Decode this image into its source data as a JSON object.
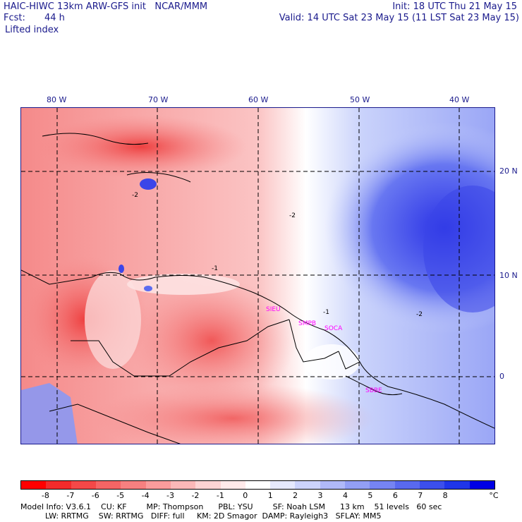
{
  "header": {
    "title": "HAIC-HIWC 13km ARW-GFS init   NCAR/MMM",
    "init": "Init: 18 UTC Thu 21 May 15",
    "fcst_label": "Fcst:",
    "fcst_value": "44 h",
    "valid": "Valid: 14 UTC Sat 23 May 15 (11 LST Sat 23 May 15)",
    "field": "Lifted index"
  },
  "map": {
    "lon_labels": [
      "80 W",
      "70 W",
      "60 W",
      "50 W",
      "40 W"
    ],
    "lat_labels": [
      "20 N",
      "10 N",
      "0"
    ],
    "contour_labels": [
      "-2",
      "-2",
      "-1",
      "-1",
      "-2"
    ],
    "stations": [
      "SIEU",
      "SMPB",
      "SOCA",
      "SBBE"
    ],
    "colors": {
      "neg_strong": "#f04a4a",
      "neg_mid": "#f58a8a",
      "neg_weak": "#fbc4c4",
      "neutral": "#ffffff",
      "pos_weak": "#c9d2fb",
      "pos_mid": "#7f8ef4",
      "pos_strong": "#2a32e6",
      "grid": "#000000",
      "coast": "#000000",
      "station": "#ff00ff"
    }
  },
  "colorbar": {
    "colors": [
      "#ff0000",
      "#f22b2b",
      "#f44848",
      "#f56565",
      "#f78080",
      "#f99c9c",
      "#fbb8b8",
      "#fdd4d4",
      "#ffeaea",
      "#ffffff",
      "#e6e9fd",
      "#ccd3fb",
      "#b0b9f8",
      "#939ff5",
      "#7684f2",
      "#5969ef",
      "#3c4fec",
      "#1f35e9",
      "#0000e6"
    ],
    "labels": [
      "-8",
      "-7",
      "-6",
      "-5",
      "-4",
      "-3",
      "-2",
      "-1",
      "0",
      "1",
      "2",
      "3",
      "4",
      "5",
      "6",
      "7",
      "8"
    ],
    "unit": "°C"
  },
  "footer": {
    "line1": "Model Info: V3.6.1    CU: KF        MP: Thompson      PBL: YSU        SF: Noah LSM      13 km    51 levels   60 sec",
    "line2": "          LW: RRTMG    SW: RRTMG   DIFF: full     KM: 2D Smagor  DAMP: Rayleigh3   SFLAY: MM5"
  }
}
